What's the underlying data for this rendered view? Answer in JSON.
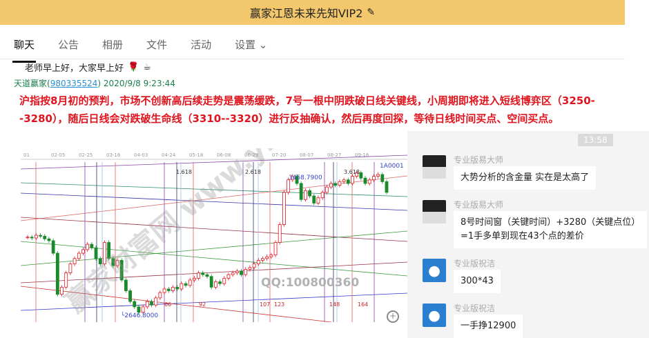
{
  "window": {
    "title": "赢家江恩未来先知VIP2",
    "edit_icon": "pencil-icon"
  },
  "tabs": [
    {
      "label": "聊天",
      "active": true
    },
    {
      "label": "公告"
    },
    {
      "label": "相册"
    },
    {
      "label": "文件"
    },
    {
      "label": "活动"
    },
    {
      "label": "设置 ⌄"
    }
  ],
  "messages": {
    "greeting": "老师早上好，大家早上好",
    "sender": "天道赢家(",
    "sender_id": "980335524",
    "sender_close": ")",
    "timestamp": "2020/9/8 9:23:44",
    "analysis": "沪指按8月初的预判，市场不创新高后续走势是震荡缓跌，7号一根中阴跌破日线关键线，小周期即将进入短线博弈区（3250--3280），随后日线会对跌破生命线（3310--3320）进行反抽确认，然后再度回探，等待日线时间买点、空间买点。"
  },
  "chart_image": {
    "code": "1A0001",
    "x_ticks": [
      "01",
      "02-05",
      "02-25",
      "03-16",
      "04-03",
      "04-24",
      "05-18",
      "06-08",
      "06-29",
      "07-20",
      "08-07",
      "08-27",
      "09-16"
    ],
    "high_label": "3458.7900",
    "low_label": "2646.8000",
    "watermark": "QQ:100800360",
    "site_watermark": "赢家财富网 www.yingjia360.com",
    "fib_labels": [
      "1.618",
      "2.618",
      "3.618"
    ],
    "bar_labels": [
      "66",
      "92",
      "107",
      "123",
      "148",
      "164"
    ],
    "closes": [
      3080,
      3075,
      3090,
      3085,
      3070,
      3060,
      2990,
      2760,
      2800,
      2880,
      2930,
      2960,
      2990,
      3010,
      3040,
      3020,
      2960,
      2930,
      3050,
      2960,
      2920,
      2950,
      2840,
      2780,
      2720,
      2690,
      2660,
      2690,
      2720,
      2700,
      2740,
      2770,
      2790,
      2780,
      2800,
      2790,
      2820,
      2810,
      2840,
      2850,
      2880,
      2870,
      2860,
      2800,
      2830,
      2820,
      2850,
      2870,
      2880,
      2890,
      2870,
      2900,
      2910,
      2930,
      2950,
      2960,
      2970,
      2980,
      3050,
      3150,
      3330,
      3400,
      3420,
      3380,
      3290,
      3340,
      3310,
      3270,
      3300,
      3330,
      3360,
      3380,
      3370,
      3390,
      3400,
      3380,
      3420,
      3440,
      3410,
      3380,
      3400,
      3420,
      3430,
      3390,
      3330
    ],
    "up_color": "#e0141e",
    "down_color": "#1a8a2a"
  },
  "chat": {
    "time": "13:58",
    "items": [
      {
        "name": "专业版易大师",
        "text": "大势分析的含金量 实在是太高了",
        "avatar": "anime-avatar"
      },
      {
        "name": "专业版易大师",
        "text": "8号时间窗（关键时间）+3280（关键点位）",
        "text2": "=1手多单到现在43个点的差价",
        "avatar": "anime-avatar"
      },
      {
        "name": "专业版祝洁",
        "text": "300*43",
        "avatar": "doraemon-avatar"
      },
      {
        "name": "专业版祝洁",
        "text": "一手挣12900",
        "avatar": "doraemon-avatar"
      }
    ]
  }
}
